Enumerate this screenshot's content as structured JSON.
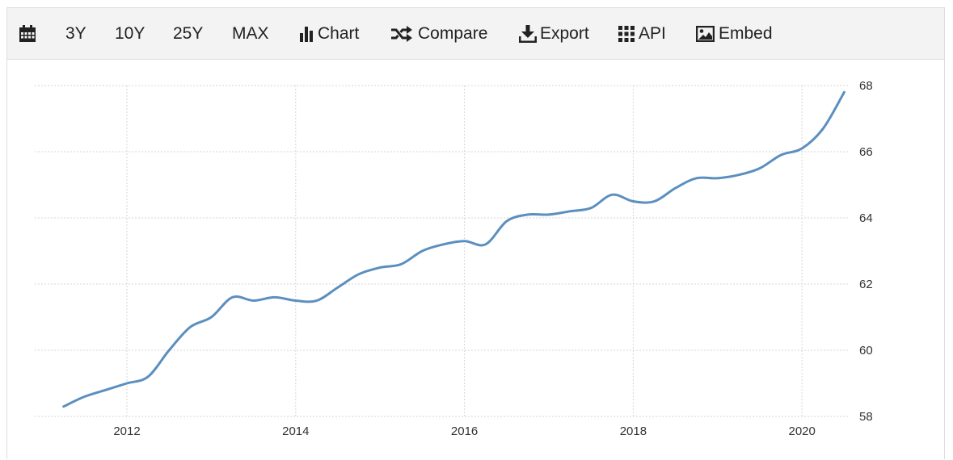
{
  "toolbar": {
    "items": [
      {
        "id": "calendar",
        "label": "",
        "icon": "calendar-icon"
      },
      {
        "id": "3y",
        "label": "3Y"
      },
      {
        "id": "10y",
        "label": "10Y"
      },
      {
        "id": "25y",
        "label": "25Y"
      },
      {
        "id": "max",
        "label": "MAX"
      },
      {
        "id": "chart",
        "label": "Chart",
        "icon": "bar-chart-icon"
      },
      {
        "id": "compare",
        "label": "Compare",
        "icon": "shuffle-icon"
      },
      {
        "id": "export",
        "label": "Export",
        "icon": "download-icon"
      },
      {
        "id": "api",
        "label": "API",
        "icon": "grid-icon"
      },
      {
        "id": "embed",
        "label": "Embed",
        "icon": "image-icon"
      }
    ]
  },
  "colors": {
    "line": "#5b8fbf",
    "grid": "#d6d6d6",
    "toolbar_bg": "#f3f3f3",
    "text": "#222222"
  },
  "chart_data": {
    "type": "line",
    "title": "",
    "xlabel": "",
    "ylabel": "",
    "x_ticks": [
      "2012",
      "2014",
      "2016",
      "2018",
      "2020"
    ],
    "y_ticks": [
      58,
      60,
      62,
      64,
      66,
      68
    ],
    "ylim": [
      58,
      68
    ],
    "xlim": [
      2011.0,
      2020.7
    ],
    "grid": true,
    "y_axis_side": "right",
    "series": [
      {
        "x": [
          2011.25,
          2011.5,
          2011.75,
          2012.0,
          2012.25,
          2012.5,
          2012.75,
          2013.0,
          2013.25,
          2013.5,
          2013.75,
          2014.0,
          2014.25,
          2014.5,
          2014.75,
          2015.0,
          2015.25,
          2015.5,
          2015.75,
          2016.0,
          2016.25,
          2016.5,
          2016.75,
          2017.0,
          2017.25,
          2017.5,
          2017.75,
          2018.0,
          2018.25,
          2018.5,
          2018.75,
          2019.0,
          2019.25,
          2019.5,
          2019.75,
          2020.0,
          2020.25,
          2020.5
        ],
        "values": [
          58.3,
          58.6,
          58.8,
          59.0,
          59.2,
          60.0,
          60.7,
          61.0,
          61.6,
          61.5,
          61.6,
          61.5,
          61.5,
          61.9,
          62.3,
          62.5,
          62.6,
          63.0,
          63.2,
          63.3,
          63.2,
          63.9,
          64.1,
          64.1,
          64.2,
          64.3,
          64.7,
          64.5,
          64.5,
          64.9,
          65.2,
          65.2,
          65.3,
          65.5,
          65.9,
          66.1,
          66.7,
          67.8
        ]
      }
    ]
  }
}
